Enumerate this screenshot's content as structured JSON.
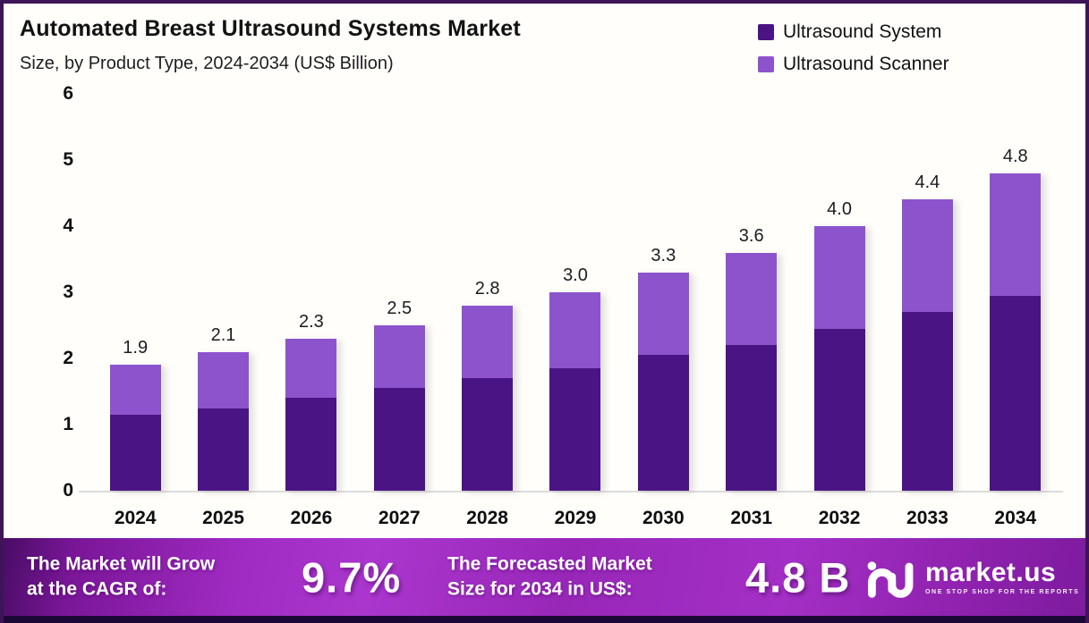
{
  "header": {
    "title": "Automated Breast Ultrasound Systems Market",
    "subtitle": "Size, by Product Type, 2024-2034 (US$ Billion)"
  },
  "legend": {
    "items": [
      {
        "label": "Ultrasound System",
        "color": "#4A1485"
      },
      {
        "label": "Ultrasound Scanner",
        "color": "#8C53CD"
      }
    ]
  },
  "chart_data": {
    "type": "bar",
    "stacked": true,
    "title": "Automated Breast Ultrasound Systems Market Size, by Product Type, 2024-2034 (US$ Billion)",
    "categories": [
      "2024",
      "2025",
      "2026",
      "2027",
      "2028",
      "2029",
      "2030",
      "2031",
      "2032",
      "2033",
      "2034"
    ],
    "series": [
      {
        "name": "Ultrasound System",
        "color": "#4A1485",
        "values": [
          1.15,
          1.25,
          1.4,
          1.55,
          1.7,
          1.85,
          2.05,
          2.2,
          2.45,
          2.7,
          2.95
        ]
      },
      {
        "name": "Ultrasound Scanner",
        "color": "#8C53CD",
        "values": [
          0.75,
          0.85,
          0.9,
          0.95,
          1.1,
          1.15,
          1.25,
          1.4,
          1.55,
          1.7,
          1.85
        ]
      }
    ],
    "totals": [
      1.9,
      2.1,
      2.3,
      2.5,
      2.8,
      3.0,
      3.3,
      3.6,
      4.0,
      4.4,
      4.8
    ],
    "total_labels": [
      "1.9",
      "2.1",
      "2.3",
      "2.5",
      "2.8",
      "3.0",
      "3.3",
      "3.6",
      "4.0",
      "4.4",
      "4.8"
    ],
    "ylabel": "",
    "xlabel": "",
    "ylim": [
      0,
      6
    ],
    "yticks": [
      0,
      1,
      2,
      3,
      4,
      5,
      6
    ],
    "grid": false,
    "legend_position": "top-right"
  },
  "footer": {
    "cagr_label_line1": "The Market will Grow",
    "cagr_label_line2": "at the CAGR of:",
    "cagr_value": "9.7%",
    "forecast_label_line1": "The Forecasted Market",
    "forecast_label_line2": "Size for 2034 in US$:",
    "forecast_value": "4.8 B",
    "logo_text": "market.us",
    "logo_tagline": "ONE STOP SHOP FOR THE REPORTS"
  },
  "colors": {
    "page_background": "#FFFEFA",
    "page_border": "#3D1458",
    "bar_dark": "#4A1485",
    "bar_light": "#8C53CD",
    "footer_bottom_strip": "#1C0836",
    "baseline": "#DCDCDC"
  }
}
